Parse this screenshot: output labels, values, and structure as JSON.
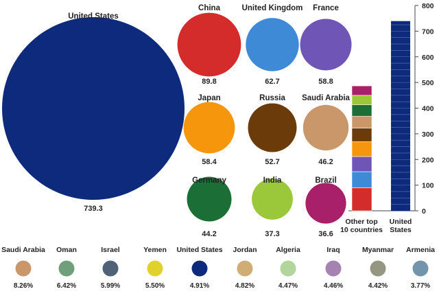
{
  "chart_data": [
    {
      "type": "bubble",
      "bubbles": [
        {
          "name": "United States",
          "value": 739.3,
          "value_label": "739.3",
          "color": "#0e2a7d"
        },
        {
          "name": "China",
          "value": 89.8,
          "value_label": "89.8",
          "color": "#d42b2b"
        },
        {
          "name": "United Kingdom",
          "value": 62.7,
          "value_label": "62.7",
          "color": "#3f8ad6"
        },
        {
          "name": "France",
          "value": 58.8,
          "value_label": "58.8",
          "color": "#6f55b6"
        },
        {
          "name": "Japan",
          "value": 58.4,
          "value_label": "58.4",
          "color": "#f5960d"
        },
        {
          "name": "Russia",
          "value": 52.7,
          "value_label": "52.7",
          "color": "#6b3b0a"
        },
        {
          "name": "Saudi Arabia",
          "value": 46.2,
          "value_label": "46.2",
          "color": "#c9976a"
        },
        {
          "name": "Germany",
          "value": 44.2,
          "value_label": "44.2",
          "color": "#1b6e36"
        },
        {
          "name": "India",
          "value": 37.3,
          "value_label": "37.3",
          "color": "#9bc83a"
        },
        {
          "name": "Brazil",
          "value": 36.6,
          "value_label": "36.6",
          "color": "#a8206a"
        }
      ]
    },
    {
      "type": "stacked_bar",
      "categories": [
        "Other top\n10 countries",
        "United\nStates"
      ],
      "ylim": [
        0,
        800
      ],
      "yticks": [
        "0",
        "100",
        "200",
        "300",
        "400",
        "500",
        "600",
        "700",
        "800"
      ],
      "stack_segments": [
        {
          "name": "China",
          "value": 89.8,
          "color": "#d42b2b"
        },
        {
          "name": "United Kingdom",
          "value": 62.7,
          "color": "#3f8ad6"
        },
        {
          "name": "France",
          "value": 58.8,
          "color": "#6f55b6"
        },
        {
          "name": "Japan",
          "value": 58.4,
          "color": "#f5960d"
        },
        {
          "name": "Russia",
          "value": 52.7,
          "color": "#6b3b0a"
        },
        {
          "name": "Saudi Arabia",
          "value": 46.2,
          "color": "#c9976a"
        },
        {
          "name": "Germany",
          "value": 44.2,
          "color": "#1b6e36"
        },
        {
          "name": "India",
          "value": 37.3,
          "color": "#9bc83a"
        },
        {
          "name": "Brazil",
          "value": 36.6,
          "color": "#a8206a"
        }
      ],
      "us_value": 739.3,
      "us_color": "#0e2a7d"
    },
    {
      "type": "bubble_row",
      "items": [
        {
          "name": "Saudi Arabia",
          "value": "8.26%",
          "color": "#c9976a"
        },
        {
          "name": "Oman",
          "value": "6.42%",
          "color": "#6f9f7b"
        },
        {
          "name": "Israel",
          "value": "5.99%",
          "color": "#4f6278"
        },
        {
          "name": "Yemen",
          "value": "5.50%",
          "color": "#e1d12d"
        },
        {
          "name": "United States",
          "value": "4.91%",
          "color": "#0e2a7d"
        },
        {
          "name": "Jordan",
          "value": "4.82%",
          "color": "#d0ad72"
        },
        {
          "name": "Algeria",
          "value": "4.47%",
          "color": "#b2d59b"
        },
        {
          "name": "Iraq",
          "value": "4.46%",
          "color": "#a682b2"
        },
        {
          "name": "Myanmar",
          "value": "4.42%",
          "color": "#959782"
        },
        {
          "name": "Armenia",
          "value": "3.77%",
          "color": "#7395ab"
        }
      ]
    }
  ]
}
